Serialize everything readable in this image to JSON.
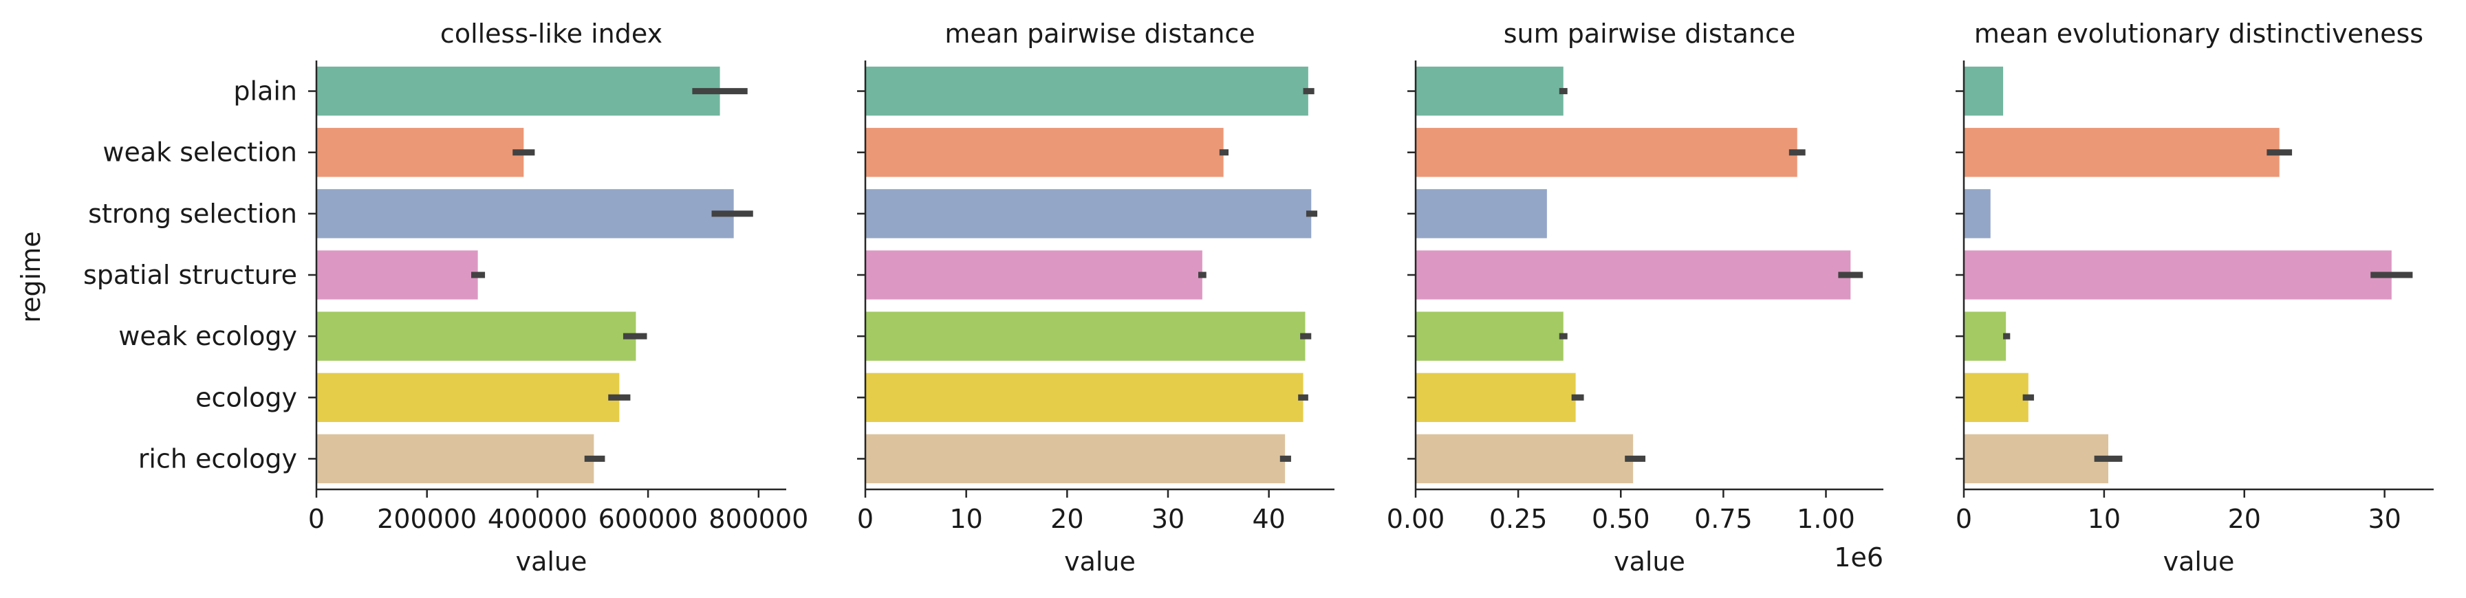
{
  "chart_data": {
    "type": "bar",
    "orientation": "horizontal",
    "ylabel": "regime",
    "categories": [
      "plain",
      "weak selection",
      "strong selection",
      "spatial structure",
      "weak ecology",
      "ecology",
      "rich ecology"
    ],
    "colors": [
      "#72b69f",
      "#eb9877",
      "#94a6c7",
      "#dc98c3",
      "#a3ca63",
      "#e5cd4a",
      "#dcc39e"
    ],
    "facets": [
      {
        "title": "colless-like index",
        "xlabel": "value",
        "xlim": [
          0,
          850000
        ],
        "xticks": [
          0,
          200000,
          400000,
          600000,
          800000
        ],
        "xtick_labels": [
          "0",
          "200000",
          "400000",
          "600000",
          "800000"
        ],
        "offset_label": "",
        "values": [
          730000,
          375000,
          755000,
          292000,
          578000,
          548000,
          502000
        ],
        "err_low": [
          680000,
          355000,
          715000,
          280000,
          555000,
          528000,
          485000
        ],
        "err_high": [
          780000,
          395000,
          790000,
          305000,
          598000,
          568000,
          522000
        ]
      },
      {
        "title": "mean pairwise distance",
        "xlabel": "value",
        "xlim": [
          0,
          46.5
        ],
        "xticks": [
          0,
          10,
          20,
          30,
          40
        ],
        "xtick_labels": [
          "0",
          "10",
          "20",
          "30",
          "40"
        ],
        "offset_label": "",
        "values": [
          43.9,
          35.5,
          44.2,
          33.4,
          43.6,
          43.4,
          41.6
        ],
        "err_low": [
          43.4,
          35.1,
          43.7,
          33.0,
          43.1,
          42.9,
          41.1
        ],
        "err_high": [
          44.5,
          36.0,
          44.8,
          33.8,
          44.2,
          43.9,
          42.2
        ]
      },
      {
        "title": "sum pairwise distance",
        "xlabel": "value",
        "xlim": [
          0,
          1.14
        ],
        "xticks": [
          0,
          0.25,
          0.5,
          0.75,
          1.0
        ],
        "xtick_labels": [
          "0.00",
          "0.25",
          "0.50",
          "0.75",
          "1.00"
        ],
        "offset_label": "1e6",
        "values": [
          0.36,
          0.93,
          0.32,
          1.06,
          0.36,
          0.39,
          0.53
        ],
        "err_low": [
          0.35,
          0.91,
          0.32,
          1.03,
          0.35,
          0.38,
          0.51
        ],
        "err_high": [
          0.37,
          0.95,
          0.32,
          1.09,
          0.37,
          0.41,
          0.56
        ]
      },
      {
        "title": "mean evolutionary distinctiveness",
        "xlabel": "value",
        "xlim": [
          0,
          33.5
        ],
        "xticks": [
          0,
          10,
          20,
          30
        ],
        "xtick_labels": [
          "0",
          "10",
          "20",
          "30"
        ],
        "offset_label": "",
        "values": [
          2.8,
          22.5,
          1.9,
          30.5,
          3.0,
          4.6,
          10.3
        ],
        "err_low": [
          2.8,
          21.6,
          1.9,
          29.0,
          2.8,
          4.2,
          9.3
        ],
        "err_high": [
          2.8,
          23.4,
          1.9,
          32.0,
          3.3,
          5.0,
          11.3
        ]
      }
    ]
  }
}
